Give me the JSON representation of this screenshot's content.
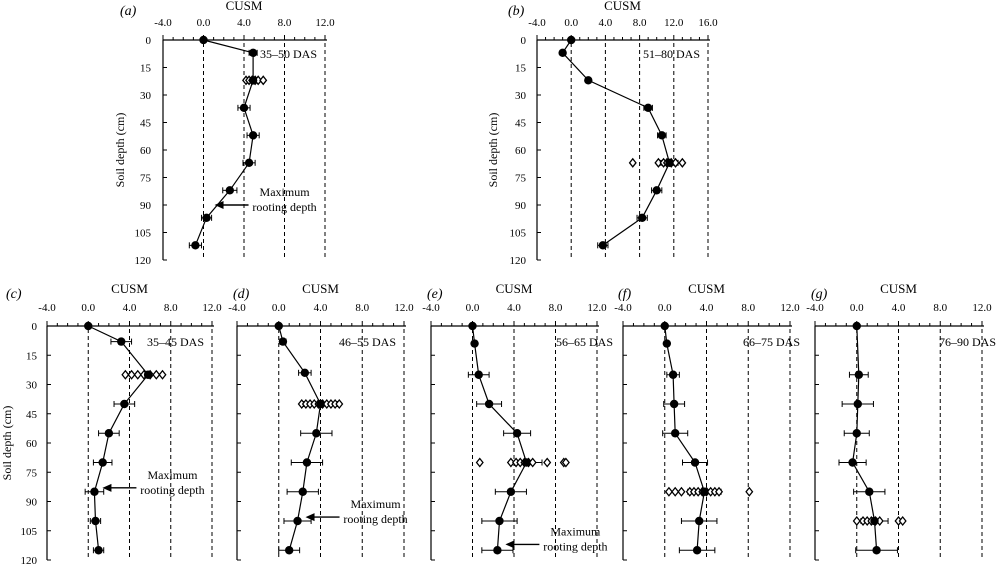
{
  "figure": {
    "x_title": "CUSM",
    "y_title": "Soil depth (cm)",
    "annotation": [
      "Maximum",
      "rooting depth"
    ]
  },
  "chart_data": [
    {
      "panel": "(a)",
      "type": "scatter",
      "period": "35–50 DAS",
      "xlim": [
        -4,
        12
      ],
      "ylim": [
        120,
        0
      ],
      "xticks": [
        "-4.0",
        "0.0",
        "4.0",
        "8.0",
        "12.0"
      ],
      "xtick_values": [
        -4,
        0,
        4,
        8,
        12
      ],
      "yticks": [
        "0",
        "15",
        "30",
        "45",
        "60",
        "75",
        "90",
        "105",
        "120"
      ],
      "ytick_values": [
        0,
        15,
        30,
        45,
        60,
        75,
        90,
        105,
        120
      ],
      "dashed_x": [
        0,
        4,
        8,
        12
      ],
      "show_ylabel": true,
      "annotation_at_depth": 90,
      "points": [
        {
          "depth": 0,
          "value": 0.0,
          "err": 0
        },
        {
          "depth": 7,
          "value": 4.9,
          "err": 0.4
        },
        {
          "depth": 22,
          "value": 4.9,
          "err": 0.6
        },
        {
          "depth": 37,
          "value": 4.0,
          "err": 0.6
        },
        {
          "depth": 52,
          "value": 4.9,
          "err": 0.6
        },
        {
          "depth": 67,
          "value": 4.5,
          "err": 0.6
        },
        {
          "depth": 82,
          "value": 2.6,
          "err": 0.7
        },
        {
          "depth": 97,
          "value": 0.3,
          "err": 0.5
        },
        {
          "depth": 112,
          "value": -0.8,
          "err": 0.6
        }
      ],
      "open_markers": [
        {
          "depth": 22,
          "values": [
            4.2,
            4.5,
            4.8,
            5.1,
            5.4,
            5.9
          ]
        }
      ]
    },
    {
      "panel": "(b)",
      "type": "scatter",
      "period": "51–80 DAS",
      "xlim": [
        -4,
        16
      ],
      "ylim": [
        120,
        0
      ],
      "xticks": [
        "-4.0",
        "0.0",
        "4.0",
        "8.0",
        "12.0",
        "16.0"
      ],
      "xtick_values": [
        -4,
        0,
        4,
        8,
        12,
        16
      ],
      "yticks": [
        "0",
        "15",
        "30",
        "45",
        "60",
        "75",
        "90",
        "105",
        "120"
      ],
      "ytick_values": [
        0,
        15,
        30,
        45,
        60,
        75,
        90,
        105,
        120
      ],
      "dashed_x": [
        0,
        4,
        8,
        12,
        16
      ],
      "show_ylabel": true,
      "annotation_at_depth": null,
      "points": [
        {
          "depth": 0,
          "value": 0.0,
          "err": 0
        },
        {
          "depth": 7,
          "value": -1.0,
          "err": 0
        },
        {
          "depth": 22,
          "value": 2.0,
          "err": 0
        },
        {
          "depth": 37,
          "value": 9.0,
          "err": 0.5
        },
        {
          "depth": 52,
          "value": 10.6,
          "err": 0.5
        },
        {
          "depth": 67,
          "value": 11.5,
          "err": 1.0
        },
        {
          "depth": 82,
          "value": 10.0,
          "err": 0.6
        },
        {
          "depth": 97,
          "value": 8.3,
          "err": 0.6
        },
        {
          "depth": 112,
          "value": 3.7,
          "err": 0.6
        }
      ],
      "open_markers": [
        {
          "depth": 67,
          "values": [
            7.2,
            10.2,
            10.8,
            11.2,
            11.7,
            12.2,
            13.0
          ]
        }
      ]
    },
    {
      "panel": "(c)",
      "type": "scatter",
      "period": "35–45 DAS",
      "xlim": [
        -4,
        12
      ],
      "ylim": [
        120,
        0
      ],
      "xticks": [
        "-4.0",
        "0.0",
        "4.0",
        "8.0",
        "12.0"
      ],
      "xtick_values": [
        -4,
        0,
        4,
        8,
        12
      ],
      "yticks": [
        "0",
        "15",
        "30",
        "45",
        "60",
        "75",
        "90",
        "105",
        "120"
      ],
      "ytick_values": [
        0,
        15,
        30,
        45,
        60,
        75,
        90,
        105,
        120
      ],
      "dashed_x": [
        0,
        4,
        8,
        12
      ],
      "show_ylabel": true,
      "annotation_at_depth": 83,
      "points": [
        {
          "depth": 0,
          "value": 0.0,
          "err": 0
        },
        {
          "depth": 8,
          "value": 3.2,
          "err": 1.0
        },
        {
          "depth": 25,
          "value": 5.8,
          "err": 1.5
        },
        {
          "depth": 40,
          "value": 3.5,
          "err": 1.0
        },
        {
          "depth": 55,
          "value": 2.0,
          "err": 1.0
        },
        {
          "depth": 70,
          "value": 1.4,
          "err": 0.9
        },
        {
          "depth": 85,
          "value": 0.6,
          "err": 0.9
        },
        {
          "depth": 100,
          "value": 0.7,
          "err": 0.5
        },
        {
          "depth": 115,
          "value": 1.0,
          "err": 0.5
        }
      ],
      "open_markers": [
        {
          "depth": 25,
          "values": [
            3.6,
            4.2,
            4.8,
            5.4,
            6.0,
            6.6,
            7.2
          ]
        }
      ]
    },
    {
      "panel": "(d)",
      "type": "scatter",
      "period": "46–55 DAS",
      "xlim": [
        -4,
        12
      ],
      "ylim": [
        120,
        0
      ],
      "xticks": [
        "-4.0",
        "0.0",
        "4.0",
        "8.0",
        "12.0"
      ],
      "xtick_values": [
        -4,
        0,
        4,
        8,
        12
      ],
      "yticks": [],
      "ytick_values": [
        0,
        15,
        30,
        45,
        60,
        75,
        90,
        105,
        120
      ],
      "dashed_x": [
        0,
        4,
        8,
        12
      ],
      "show_ylabel": false,
      "annotation_at_depth": 98,
      "points": [
        {
          "depth": 0,
          "value": 0.0,
          "err": 0
        },
        {
          "depth": 8,
          "value": 0.4,
          "err": 0.3
        },
        {
          "depth": 24,
          "value": 2.5,
          "err": 0.6
        },
        {
          "depth": 40,
          "value": 4.0,
          "err": 1.6
        },
        {
          "depth": 55,
          "value": 3.6,
          "err": 1.5
        },
        {
          "depth": 70,
          "value": 2.7,
          "err": 1.5
        },
        {
          "depth": 85,
          "value": 2.3,
          "err": 1.5
        },
        {
          "depth": 100,
          "value": 1.8,
          "err": 1.3
        },
        {
          "depth": 115,
          "value": 1.0,
          "err": 1.0
        }
      ],
      "open_markers": [
        {
          "depth": 40,
          "values": [
            2.2,
            2.6,
            3.0,
            3.4,
            3.8,
            4.2,
            4.6,
            5.0,
            5.4,
            5.8
          ]
        }
      ]
    },
    {
      "panel": "(e)",
      "type": "scatter",
      "period": "56–65 DAS",
      "xlim": [
        -4,
        12
      ],
      "ylim": [
        120,
        0
      ],
      "xticks": [
        "-4.0",
        "0.0",
        "4.0",
        "8.0",
        "12.0"
      ],
      "xtick_values": [
        -4,
        0,
        4,
        8,
        12
      ],
      "yticks": [],
      "ytick_values": [
        0,
        15,
        30,
        45,
        60,
        75,
        90,
        105,
        120
      ],
      "dashed_x": [
        0,
        4,
        8,
        12
      ],
      "show_ylabel": false,
      "annotation_at_depth": 112,
      "points": [
        {
          "depth": 0,
          "value": 0.0,
          "err": 0
        },
        {
          "depth": 9,
          "value": 0.2,
          "err": 0.2
        },
        {
          "depth": 25,
          "value": 0.6,
          "err": 1.0
        },
        {
          "depth": 40,
          "value": 1.6,
          "err": 1.2
        },
        {
          "depth": 55,
          "value": 4.3,
          "err": 1.3
        },
        {
          "depth": 70,
          "value": 5.2,
          "err": 1.5
        },
        {
          "depth": 85,
          "value": 3.7,
          "err": 1.5
        },
        {
          "depth": 100,
          "value": 2.6,
          "err": 1.7
        },
        {
          "depth": 115,
          "value": 2.4,
          "err": 1.5
        }
      ],
      "open_markers": [
        {
          "depth": 70,
          "values": [
            0.7,
            3.7,
            4.2,
            4.6,
            5.0,
            5.4,
            5.8,
            7.2,
            8.8,
            9.0
          ]
        }
      ]
    },
    {
      "panel": "(f)",
      "type": "scatter",
      "period": "66–75 DAS",
      "xlim": [
        -4,
        12
      ],
      "ylim": [
        120,
        0
      ],
      "xticks": [
        "-4.0",
        "0.0",
        "4.0",
        "8.0",
        "12.0"
      ],
      "xtick_values": [
        -4,
        0,
        4,
        8,
        12
      ],
      "yticks": [],
      "ytick_values": [
        0,
        15,
        30,
        45,
        60,
        75,
        90,
        105,
        120
      ],
      "dashed_x": [
        0,
        4,
        8,
        12
      ],
      "show_ylabel": false,
      "annotation_at_depth": null,
      "points": [
        {
          "depth": 0,
          "value": 0.0,
          "err": 0
        },
        {
          "depth": 9,
          "value": 0.2,
          "err": 0.2
        },
        {
          "depth": 25,
          "value": 0.8,
          "err": 0.6
        },
        {
          "depth": 40,
          "value": 0.9,
          "err": 1.0
        },
        {
          "depth": 55,
          "value": 1.0,
          "err": 1.2
        },
        {
          "depth": 70,
          "value": 2.9,
          "err": 1.2
        },
        {
          "depth": 85,
          "value": 3.8,
          "err": 1.6
        },
        {
          "depth": 100,
          "value": 3.3,
          "err": 1.7
        },
        {
          "depth": 115,
          "value": 3.1,
          "err": 1.7
        }
      ],
      "open_markers": [
        {
          "depth": 85,
          "values": [
            0.4,
            1.0,
            1.6,
            2.4,
            2.8,
            3.2,
            3.6,
            4.0,
            4.4,
            4.8,
            5.2,
            8.1
          ]
        }
      ]
    },
    {
      "panel": "(g)",
      "type": "scatter",
      "period": "76–90 DAS",
      "xlim": [
        -4,
        12
      ],
      "ylim": [
        120,
        0
      ],
      "xticks": [
        "-4.0",
        "0.0",
        "4.0",
        "8.0",
        "12.0"
      ],
      "xtick_values": [
        -4,
        0,
        4,
        8,
        12
      ],
      "yticks": [],
      "ytick_values": [
        0,
        15,
        30,
        45,
        60,
        75,
        90,
        105,
        120
      ],
      "dashed_x": [
        0,
        4,
        8,
        12
      ],
      "show_ylabel": false,
      "annotation_at_depth": null,
      "points": [
        {
          "depth": 0,
          "value": 0.0,
          "err": 0
        },
        {
          "depth": 25,
          "value": 0.2,
          "err": 0.9
        },
        {
          "depth": 40,
          "value": 0.1,
          "err": 1.5
        },
        {
          "depth": 55,
          "value": 0.0,
          "err": 1.2
        },
        {
          "depth": 70,
          "value": -0.4,
          "err": 1.3
        },
        {
          "depth": 85,
          "value": 1.2,
          "err": 1.5
        },
        {
          "depth": 100,
          "value": 1.7,
          "err": 1.3
        },
        {
          "depth": 115,
          "value": 1.9,
          "err": 2.0
        }
      ],
      "open_markers": [
        {
          "depth": 100,
          "values": [
            0.0,
            0.6,
            1.0,
            1.4,
            1.8,
            2.2,
            4.0,
            4.4
          ]
        }
      ]
    }
  ]
}
